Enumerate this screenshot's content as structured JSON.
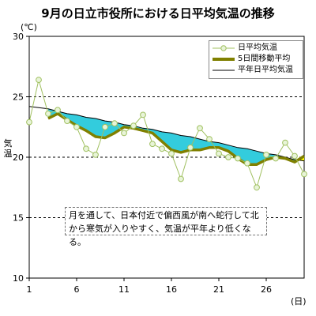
{
  "chart_data": {
    "type": "line",
    "title": "9月の日立市役所における日平均気温の推移",
    "ylabel": "気温",
    "y_unit": "(℃)",
    "x_unit": "(日)",
    "ylim": [
      10,
      30
    ],
    "xlim": [
      1,
      30
    ],
    "yticks": [
      10,
      15,
      20,
      25,
      30
    ],
    "xticks": [
      1,
      6,
      11,
      16,
      21,
      26
    ],
    "dashed_gridlines": [
      15,
      20,
      25
    ],
    "x": [
      1,
      2,
      3,
      4,
      5,
      6,
      7,
      8,
      9,
      10,
      11,
      12,
      13,
      14,
      15,
      16,
      17,
      18,
      19,
      20,
      21,
      22,
      23,
      24,
      25,
      26,
      27,
      28,
      29,
      30
    ],
    "series": [
      {
        "name": "日平均気温",
        "style": "marker-line",
        "color": "#a0c060",
        "values": [
          22.9,
          26.4,
          23.6,
          23.9,
          23.0,
          22.5,
          20.7,
          20.2,
          22.5,
          22.8,
          22.0,
          22.6,
          23.5,
          21.1,
          20.7,
          20.3,
          18.2,
          20.8,
          22.4,
          21.5,
          20.3,
          20.0,
          19.9,
          19.5,
          17.5,
          20.2,
          19.9,
          21.2,
          20.1,
          18.6
        ]
      },
      {
        "name": "5日間移動平均",
        "style": "thick-line",
        "color": "#808000",
        "values": [
          null,
          null,
          23.2,
          23.6,
          23.1,
          22.6,
          22.2,
          21.7,
          21.6,
          22.0,
          22.5,
          22.4,
          22.2,
          22.0,
          21.3,
          20.6,
          20.4,
          20.6,
          20.6,
          20.8,
          20.8,
          20.5,
          19.9,
          19.4,
          19.4,
          19.8,
          20.0,
          19.9,
          19.6,
          20.1
        ]
      },
      {
        "name": "平年日平均気温",
        "style": "thin-line",
        "color": "#000000",
        "values": [
          24.2,
          24.1,
          24.0,
          23.8,
          23.6,
          23.5,
          23.3,
          23.2,
          23.0,
          22.9,
          22.7,
          22.6,
          22.4,
          22.3,
          22.1,
          22.0,
          21.8,
          21.7,
          21.5,
          21.3,
          21.2,
          21.0,
          20.8,
          20.7,
          20.5,
          20.3,
          20.2,
          20.0,
          19.8,
          19.7
        ]
      }
    ],
    "fill_below_normal_color": "#33ccdd",
    "fill_above_normal_color": "#ffff00",
    "legend_position": "top-right",
    "annotation": [
      "月を通して、日本付近で偏西風が南へ蛇行して北",
      "から寒気が入りやすく、気温が平年より低くなる。"
    ]
  }
}
